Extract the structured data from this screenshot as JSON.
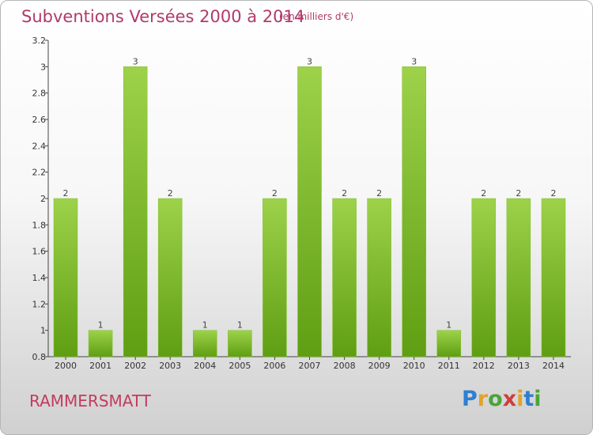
{
  "header": {
    "title": "Subventions Versées 2000 à 2014",
    "unit": "(en milliers d'€)"
  },
  "footer": {
    "commune": "RAMMERSMATT",
    "logo_letters": [
      "P",
      "r",
      "o",
      "x",
      "i",
      "t",
      "i"
    ],
    "logo_colors": [
      "#2f7fd0",
      "#e2a22a",
      "#4aa43a",
      "#d03d3d",
      "#e2a22a",
      "#2f7fd0",
      "#4aa43a"
    ]
  },
  "colors": {
    "bar_light": "#9dd24a",
    "bar_dark": "#5f9e12",
    "title": "#b03a6a",
    "commune": "#c43b5e"
  },
  "chart_data": {
    "type": "bar",
    "title": "Subventions Versées 2000 à 2014",
    "subtitle": "(en milliers d'€)",
    "categories": [
      "2000",
      "2001",
      "2002",
      "2003",
      "2004",
      "2005",
      "2006",
      "2007",
      "2008",
      "2009",
      "2010",
      "2011",
      "2012",
      "2013",
      "2014"
    ],
    "values": [
      2,
      1,
      3,
      2,
      1,
      1,
      2,
      3,
      2,
      2,
      3,
      1,
      2,
      2,
      2
    ],
    "value_labels": [
      "2",
      "1",
      "3",
      "2",
      "1",
      "1",
      "2",
      "3",
      "2",
      "2",
      "3",
      "1",
      "2",
      "2",
      "2"
    ],
    "ylim": [
      0.8,
      3.2
    ],
    "yticks": [
      0.8,
      1,
      1.2,
      1.4,
      1.6,
      1.8,
      2,
      2.2,
      2.4,
      2.6,
      2.8,
      3,
      3.2
    ],
    "ytick_labels": [
      "0.8",
      "1",
      "1.2",
      "1.4",
      "1.6",
      "1.8",
      "2",
      "2.2",
      "2.4",
      "2.6",
      "2.8",
      "3",
      "3.2"
    ],
    "grid": false,
    "xlabel": "",
    "ylabel": ""
  }
}
